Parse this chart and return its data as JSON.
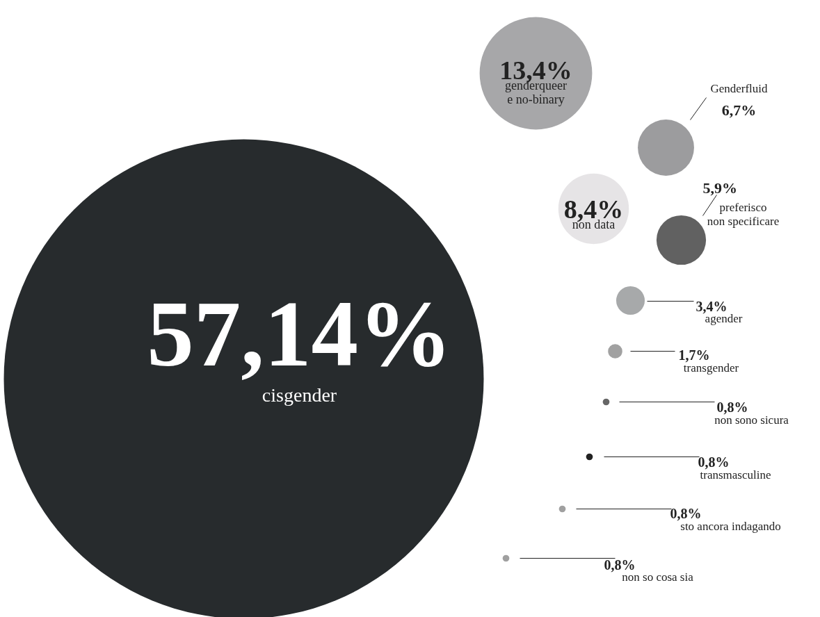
{
  "chart_data": {
    "type": "other",
    "categories": [
      "cisgender",
      "genderqueer e no-binary",
      "non data",
      "Genderfluid",
      "preferisco non specificare",
      "agender",
      "transgender",
      "non sono sicura",
      "transmasculine",
      "sto ancora indagando",
      "non so cosa sia"
    ],
    "values": [
      57.14,
      13.4,
      8.4,
      6.7,
      5.9,
      3.4,
      1.7,
      0.8,
      0.8,
      0.8,
      0.8
    ],
    "value_labels": [
      "57,14%",
      "13,4%",
      "8,4%",
      "6,7%",
      "5,9%",
      "3,4%",
      "1,7%",
      "0,8%",
      "0,8%",
      "0,8%",
      "0,8%"
    ],
    "colors": [
      "#272b2d",
      "#a7a7a9",
      "#e6e4e6",
      "#9c9c9e",
      "#616161",
      "#a7a9aa",
      "#a1a1a1",
      "#666666",
      "#222222",
      "#a0a0a0",
      "#a0a0a0"
    ]
  }
}
